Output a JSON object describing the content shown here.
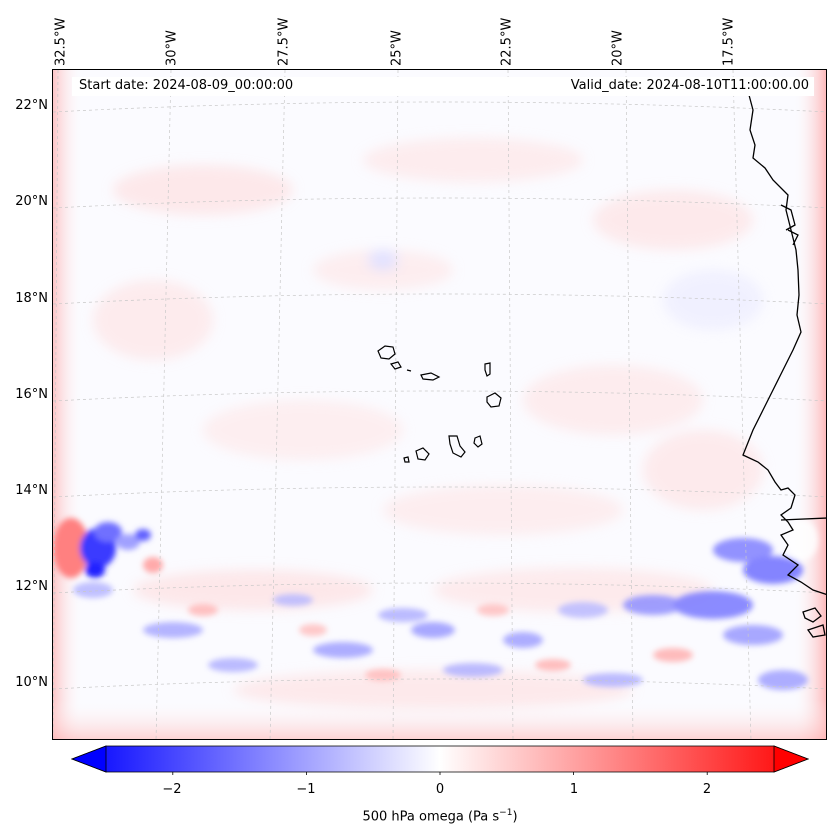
{
  "header": {
    "start_date": "Start date: 2024-08-09_00:00:00",
    "valid_date": "Valid_date: 2024-08-10T11:00:00.00"
  },
  "longitude_labels": [
    "32.5°W",
    "30°W",
    "27.5°W",
    "25°W",
    "22.5°W",
    "20°W",
    "17.5°W"
  ],
  "latitude_labels": [
    "22°N",
    "20°N",
    "18°N",
    "16°N",
    "14°N",
    "12°N",
    "10°N"
  ],
  "colorbar": {
    "ticks": [
      "−2",
      "−1",
      "0",
      "1",
      "2"
    ],
    "tick_values": [
      -2,
      -1,
      0,
      1,
      2
    ],
    "range": [
      -2.5,
      2.5
    ],
    "label_prefix": "500 hPa omega (Pa s",
    "label_exponent": "−1",
    "label_suffix": ")",
    "colormap": "bwr",
    "color_low": "#0000ff",
    "color_mid": "#ffffff",
    "color_high": "#ff0000"
  },
  "map": {
    "extent_lon": [
      -33,
      -15.5
    ],
    "extent_lat": [
      9,
      22.5
    ],
    "coastline_color": "#000000",
    "gridline_color": "#c8c8c8"
  }
}
